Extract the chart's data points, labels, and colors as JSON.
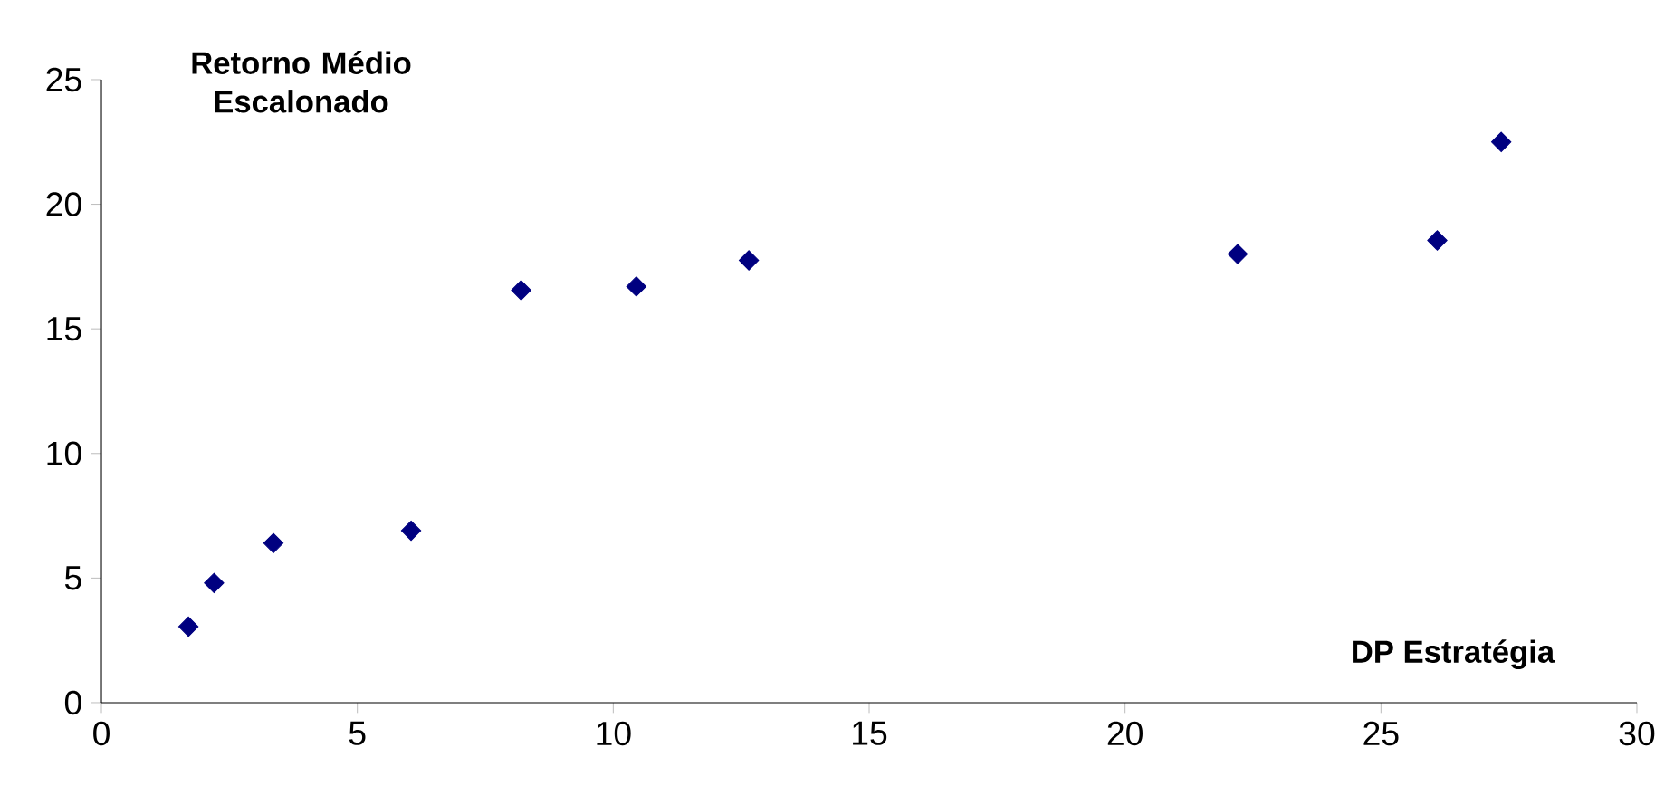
{
  "chart_data": {
    "type": "scatter",
    "xlabel": "DP Estratégia",
    "ylabel": "Retorno Médio Escalonado",
    "x": [
      1.7,
      2.2,
      3.36,
      6.05,
      8.2,
      10.45,
      12.65,
      22.2,
      26.1,
      27.35
    ],
    "series": [
      {
        "color": "#000080",
        "values": [
          3.05,
          4.8,
          6.4,
          6.9,
          16.55,
          16.7,
          17.75,
          18.0,
          18.55,
          22.5
        ]
      }
    ],
    "xlim": [
      0,
      30
    ],
    "ylim": [
      0,
      25
    ],
    "xticks": [
      0,
      5,
      10,
      15,
      20,
      25,
      30
    ],
    "yticks": [
      0,
      5,
      10,
      15,
      20,
      25
    ],
    "marker": "diamond",
    "grid": false
  }
}
